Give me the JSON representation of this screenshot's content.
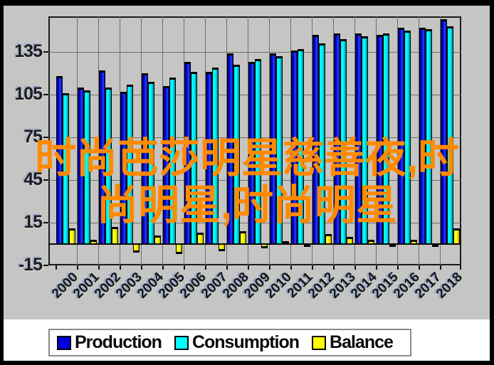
{
  "watermark": {
    "line1": "时尚芭莎明星慈善夜,时",
    "line2": "尚明星,时尚明星",
    "color": "#ff8a00"
  },
  "legend": {
    "position": "bottom",
    "items": [
      {
        "label": "Production",
        "color": "#0000dd"
      },
      {
        "label": "Consumption",
        "color": "#00ffff"
      },
      {
        "label": "Balance",
        "color": "#ffff00"
      }
    ]
  },
  "chart_data": {
    "type": "bar",
    "title": "",
    "xlabel": "",
    "ylabel": "",
    "categories": [
      2000,
      2001,
      2002,
      2003,
      2004,
      2005,
      2006,
      2007,
      2008,
      2009,
      2010,
      2011,
      2012,
      2013,
      2014,
      2015,
      2016,
      2017,
      2018
    ],
    "series": [
      {
        "name": "Production",
        "color": "#0000dd",
        "values": [
          118,
          110,
          122,
          107,
          120,
          111,
          128,
          121,
          134,
          128,
          134,
          136,
          147,
          148,
          148,
          147,
          152,
          152,
          158
        ]
      },
      {
        "name": "Consumption",
        "color": "#00ffff",
        "values": [
          106,
          108,
          110,
          112,
          114,
          117,
          121,
          124,
          126,
          130,
          132,
          137,
          141,
          144,
          146,
          148,
          150,
          151,
          153
        ]
      },
      {
        "name": "Balance",
        "color": "#ffff00",
        "values": [
          11,
          3,
          12,
          -6,
          6,
          -7,
          8,
          -5,
          9,
          -3,
          2,
          -2,
          7,
          5,
          3,
          -2,
          3,
          -2,
          11
        ]
      }
    ],
    "ylim": [
      -15,
      160
    ],
    "yticks": [
      135,
      105,
      75,
      45,
      15,
      -15
    ],
    "grid": true,
    "legend_position": "bottom"
  }
}
